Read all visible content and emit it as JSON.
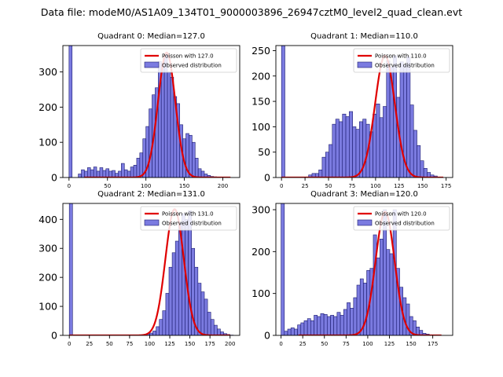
{
  "figure_title": "Data file: modeM0/AS1A09_134T01_9000003896_26947cztM0_level2_quad_clean.evt",
  "colors": {
    "hist_fill": "#7b7be0",
    "hist_edge": "#1a1a6e",
    "poisson": "#e00000"
  },
  "chart_data": [
    {
      "type": "bar",
      "title": "Quadrant 0: Median=127.0",
      "xlim": [
        -8,
        222
      ],
      "ylim": [
        0,
        375
      ],
      "xticks": [
        0,
        50,
        100,
        150,
        200
      ],
      "yticks": [
        0,
        100,
        200,
        300
      ],
      "median": 127.0,
      "poisson_peak": 355,
      "poisson_x": [
        20,
        210
      ],
      "bin_width": 4,
      "bins_x": [
        0,
        4,
        8,
        12,
        16,
        20,
        24,
        28,
        32,
        36,
        40,
        44,
        48,
        52,
        56,
        60,
        64,
        68,
        72,
        76,
        80,
        84,
        88,
        92,
        96,
        100,
        104,
        108,
        112,
        116,
        120,
        124,
        128,
        132,
        136,
        140,
        144,
        148,
        152,
        156,
        160,
        164,
        168,
        172,
        176,
        180,
        184,
        188,
        192,
        196,
        200
      ],
      "counts": [
        375,
        0,
        0,
        10,
        22,
        18,
        28,
        22,
        30,
        18,
        28,
        20,
        25,
        18,
        20,
        12,
        18,
        40,
        22,
        18,
        30,
        35,
        55,
        70,
        110,
        145,
        195,
        235,
        255,
        330,
        325,
        350,
        300,
        285,
        230,
        210,
        150,
        110,
        125,
        120,
        100,
        55,
        25,
        18,
        10,
        6,
        3,
        2,
        1,
        0,
        0
      ],
      "legend": [
        "Poisson with 127.0",
        "Observed distribution"
      ]
    },
    {
      "type": "bar",
      "title": "Quadrant 1: Median=110.0",
      "xlim": [
        -6,
        182
      ],
      "ylim": [
        0,
        260
      ],
      "xticks": [
        0,
        25,
        50,
        75,
        100,
        125,
        150,
        175
      ],
      "yticks": [
        0,
        50,
        100,
        150,
        200,
        250
      ],
      "median": 110.0,
      "poisson_peak": 240,
      "poisson_x": [
        0,
        172
      ],
      "bin_width": 3.6,
      "bins_x": [
        0,
        3.6,
        7.2,
        10.8,
        14.4,
        18,
        21.6,
        25.2,
        28.8,
        32.4,
        36,
        39.6,
        43.2,
        46.8,
        50.4,
        54,
        57.6,
        61.2,
        64.8,
        68.4,
        72,
        75.6,
        79.2,
        82.8,
        86.4,
        90,
        93.6,
        97.2,
        100.8,
        104.4,
        108,
        111.6,
        115.2,
        118.8,
        122.4,
        126,
        129.6,
        133.2,
        136.8,
        140.4,
        144,
        147.6,
        151.2,
        154.8,
        158.4,
        162,
        165.6,
        169.2
      ],
      "counts": [
        260,
        0,
        0,
        0,
        0,
        0,
        0,
        0,
        5,
        8,
        8,
        15,
        40,
        50,
        65,
        105,
        115,
        110,
        125,
        120,
        130,
        100,
        95,
        110,
        115,
        105,
        90,
        125,
        145,
        118,
        140,
        230,
        218,
        240,
        158,
        228,
        223,
        238,
        143,
        93,
        63,
        33,
        18,
        10,
        5,
        3,
        1,
        0
      ],
      "legend": [
        "Poisson with 110.0",
        "Observed distribution"
      ]
    },
    {
      "type": "bar",
      "title": "Quadrant 2: Median=131.0",
      "xlim": [
        -8,
        212
      ],
      "ylim": [
        0,
        455
      ],
      "xticks": [
        0,
        25,
        50,
        75,
        100,
        125,
        150,
        175,
        200
      ],
      "yticks": [
        0,
        100,
        200,
        300,
        400
      ],
      "median": 131.0,
      "poisson_peak": 435,
      "poisson_x": [
        0,
        200
      ],
      "bin_width": 4,
      "bins_x": [
        0,
        4,
        8,
        12,
        16,
        20,
        24,
        28,
        32,
        36,
        40,
        44,
        48,
        52,
        56,
        60,
        64,
        68,
        72,
        76,
        80,
        84,
        88,
        92,
        96,
        100,
        104,
        108,
        112,
        116,
        120,
        124,
        128,
        132,
        136,
        140,
        144,
        148,
        152,
        156,
        160,
        164,
        168,
        172,
        176,
        180,
        184,
        188,
        192,
        196,
        200
      ],
      "counts": [
        455,
        0,
        0,
        0,
        0,
        0,
        0,
        0,
        0,
        0,
        0,
        0,
        0,
        0,
        0,
        0,
        0,
        0,
        0,
        0,
        0,
        0,
        0,
        3,
        5,
        8,
        15,
        30,
        55,
        85,
        145,
        235,
        285,
        325,
        390,
        420,
        400,
        430,
        300,
        235,
        180,
        150,
        125,
        80,
        55,
        35,
        22,
        12,
        6,
        3,
        1
      ],
      "legend": [
        "Poisson with 131.0",
        "Observed distribution"
      ]
    },
    {
      "type": "bar",
      "title": "Quadrant 3: Median=120.0",
      "xlim": [
        -6,
        198
      ],
      "ylim": [
        0,
        315
      ],
      "xticks": [
        0,
        25,
        50,
        75,
        100,
        125,
        150,
        175
      ],
      "yticks": [
        0,
        100,
        200,
        300
      ],
      "median": 120.0,
      "poisson_peak": 295,
      "poisson_x": [
        20,
        185
      ],
      "bin_width": 3.8,
      "bins_x": [
        0,
        3.8,
        7.6,
        11.4,
        15.2,
        19,
        22.8,
        26.6,
        30.4,
        34.2,
        38,
        41.8,
        45.6,
        49.4,
        53.2,
        57,
        60.8,
        64.6,
        68.4,
        72.2,
        76,
        79.8,
        83.6,
        87.4,
        91.2,
        95,
        98.8,
        102.6,
        106.4,
        110.2,
        114,
        117.8,
        121.6,
        125.4,
        129.2,
        133,
        136.8,
        140.6,
        144.4,
        148.2,
        152,
        155.8,
        159.6,
        163.4,
        167.2,
        171,
        174.8
      ],
      "counts": [
        315,
        10,
        15,
        18,
        15,
        25,
        30,
        35,
        40,
        35,
        48,
        45,
        52,
        50,
        45,
        48,
        45,
        55,
        48,
        62,
        78,
        65,
        90,
        120,
        135,
        125,
        155,
        160,
        240,
        185,
        230,
        300,
        205,
        195,
        300,
        160,
        115,
        90,
        75,
        45,
        35,
        20,
        12,
        5,
        3,
        1,
        0
      ],
      "legend": [
        "Poisson with 120.0",
        "Observed distribution"
      ]
    }
  ]
}
